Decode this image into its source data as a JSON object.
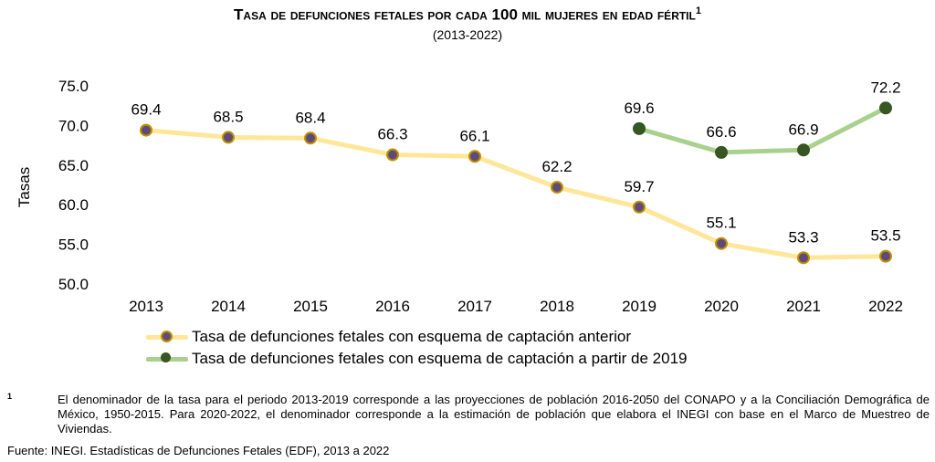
{
  "chart_data": {
    "type": "line",
    "title": "Tasa de defunciones fetales por cada 100 mil mujeres en edad fértil",
    "title_sup": "1",
    "subtitle": "(2013-2022)",
    "ylabel": "Tasas",
    "xlabel": "",
    "ylim": [
      50,
      75
    ],
    "yticks": [
      "50.0",
      "55.0",
      "60.0",
      "65.0",
      "70.0",
      "75.0"
    ],
    "categories": [
      "2013",
      "2014",
      "2015",
      "2016",
      "2017",
      "2018",
      "2019",
      "2020",
      "2021",
      "2022"
    ],
    "grid": false,
    "legend_position": "bottom",
    "series": [
      {
        "name": "Tasa de defunciones fetales con esquema de captación anterior",
        "values": [
          69.4,
          68.5,
          68.4,
          66.3,
          66.1,
          62.2,
          59.7,
          55.1,
          53.3,
          53.5
        ],
        "labels": [
          "69.4",
          "68.5",
          "68.4",
          "66.3",
          "66.1",
          "62.2",
          "59.7",
          "55.1",
          "53.3",
          "53.5"
        ],
        "line_color": "#FFE699",
        "marker_color": "#5F4B7B",
        "marker_border": "#BF9000"
      },
      {
        "name": "Tasa de defunciones fetales con esquema de captación a partir de 2019",
        "values": [
          null,
          null,
          null,
          null,
          null,
          null,
          69.6,
          66.6,
          66.9,
          72.2
        ],
        "labels": [
          null,
          null,
          null,
          null,
          null,
          null,
          "69.6",
          "66.6",
          "66.9",
          "72.2"
        ],
        "line_color": "#A9D18E",
        "marker_color": "#375623",
        "marker_border": "#375623"
      }
    ]
  },
  "footnote": {
    "mark": "1",
    "text": "El denominador de la tasa para el periodo 2013-2019 corresponde a las proyecciones de población 2016-2050 del CONAPO y a la Conciliación Demográfica de México, 1950-2015. Para 2020-2022, el denominador corresponde a la estimación de población que elabora el INEGI con base en el Marco de Muestreo de Viviendas."
  },
  "source": "Fuente: INEGI. Estadísticas de Defunciones Fetales (EDF), 2013 a 2022"
}
